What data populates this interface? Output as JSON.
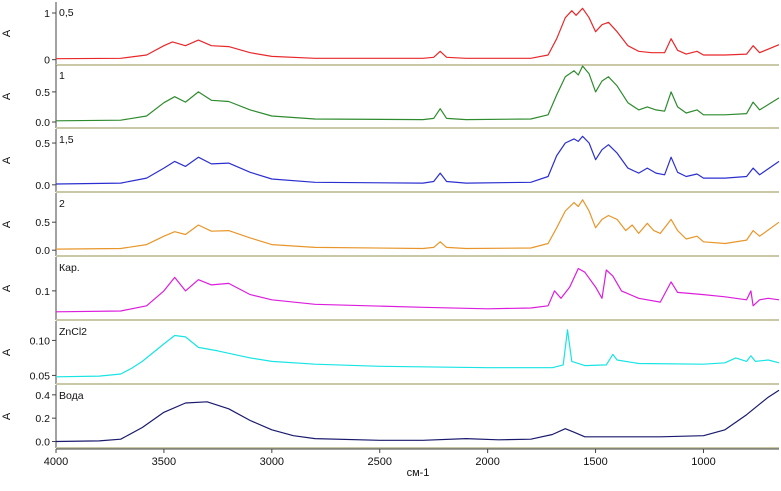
{
  "chart_data": {
    "type": "line",
    "xlabel": "см-1",
    "ylabel": "A",
    "xlim": [
      4000,
      650
    ],
    "x_reversed": true,
    "x_ticks": [
      4000,
      3500,
      3000,
      2500,
      2000,
      1500,
      1000
    ],
    "x_tick_labels": [
      "4000",
      "3500",
      "3000",
      "2500",
      "2000",
      "1500",
      "1000"
    ],
    "grid": false,
    "panels": [
      {
        "label": "0,5",
        "color": "#e8282b",
        "ylim": [
          -0.05,
          1.15
        ],
        "y_ticks": [
          0,
          1
        ],
        "y_tick_labels": [
          "0",
          "1"
        ],
        "points": [
          [
            4000,
            0.02
          ],
          [
            3700,
            0.03
          ],
          [
            3580,
            0.1
          ],
          [
            3500,
            0.3
          ],
          [
            3460,
            0.38
          ],
          [
            3400,
            0.3
          ],
          [
            3340,
            0.42
          ],
          [
            3280,
            0.3
          ],
          [
            3200,
            0.28
          ],
          [
            3100,
            0.15
          ],
          [
            3000,
            0.07
          ],
          [
            2800,
            0.03
          ],
          [
            2300,
            0.03
          ],
          [
            2250,
            0.05
          ],
          [
            2220,
            0.18
          ],
          [
            2190,
            0.05
          ],
          [
            2100,
            0.03
          ],
          [
            1800,
            0.03
          ],
          [
            1720,
            0.1
          ],
          [
            1680,
            0.45
          ],
          [
            1640,
            0.9
          ],
          [
            1610,
            1.05
          ],
          [
            1590,
            0.95
          ],
          [
            1560,
            1.1
          ],
          [
            1530,
            0.9
          ],
          [
            1500,
            0.6
          ],
          [
            1470,
            0.75
          ],
          [
            1440,
            0.8
          ],
          [
            1400,
            0.6
          ],
          [
            1350,
            0.3
          ],
          [
            1300,
            0.18
          ],
          [
            1240,
            0.15
          ],
          [
            1180,
            0.15
          ],
          [
            1150,
            0.45
          ],
          [
            1120,
            0.2
          ],
          [
            1080,
            0.12
          ],
          [
            1030,
            0.18
          ],
          [
            1000,
            0.1
          ],
          [
            900,
            0.1
          ],
          [
            800,
            0.12
          ],
          [
            770,
            0.3
          ],
          [
            740,
            0.15
          ],
          [
            650,
            0.32
          ]
        ]
      },
      {
        "label": "1",
        "color": "#2e8b2e",
        "ylim": [
          -0.05,
          0.88
        ],
        "y_ticks": [
          0.0,
          0.5
        ],
        "y_tick_labels": [
          "0.0",
          "0.5"
        ],
        "points": [
          [
            4000,
            0.02
          ],
          [
            3700,
            0.03
          ],
          [
            3580,
            0.1
          ],
          [
            3500,
            0.32
          ],
          [
            3450,
            0.42
          ],
          [
            3400,
            0.33
          ],
          [
            3340,
            0.5
          ],
          [
            3280,
            0.36
          ],
          [
            3200,
            0.34
          ],
          [
            3100,
            0.2
          ],
          [
            3000,
            0.1
          ],
          [
            2800,
            0.05
          ],
          [
            2300,
            0.04
          ],
          [
            2250,
            0.06
          ],
          [
            2220,
            0.22
          ],
          [
            2190,
            0.06
          ],
          [
            2100,
            0.04
          ],
          [
            1800,
            0.05
          ],
          [
            1720,
            0.12
          ],
          [
            1680,
            0.45
          ],
          [
            1640,
            0.75
          ],
          [
            1600,
            0.85
          ],
          [
            1580,
            0.78
          ],
          [
            1560,
            0.93
          ],
          [
            1530,
            0.8
          ],
          [
            1500,
            0.5
          ],
          [
            1470,
            0.68
          ],
          [
            1440,
            0.75
          ],
          [
            1400,
            0.6
          ],
          [
            1350,
            0.32
          ],
          [
            1300,
            0.2
          ],
          [
            1260,
            0.25
          ],
          [
            1220,
            0.2
          ],
          [
            1180,
            0.18
          ],
          [
            1150,
            0.5
          ],
          [
            1120,
            0.25
          ],
          [
            1080,
            0.15
          ],
          [
            1030,
            0.2
          ],
          [
            1000,
            0.12
          ],
          [
            900,
            0.12
          ],
          [
            800,
            0.14
          ],
          [
            770,
            0.33
          ],
          [
            740,
            0.2
          ],
          [
            650,
            0.4
          ]
        ]
      },
      {
        "label": "1,5",
        "color": "#2b2fcf",
        "ylim": [
          -0.05,
          0.62
        ],
        "y_ticks": [
          0.0,
          0.5
        ],
        "y_tick_labels": [
          "0.0",
          "0.5"
        ],
        "points": [
          [
            4000,
            0.01
          ],
          [
            3700,
            0.02
          ],
          [
            3580,
            0.08
          ],
          [
            3500,
            0.2
          ],
          [
            3450,
            0.28
          ],
          [
            3400,
            0.22
          ],
          [
            3340,
            0.33
          ],
          [
            3280,
            0.25
          ],
          [
            3200,
            0.26
          ],
          [
            3100,
            0.15
          ],
          [
            3000,
            0.07
          ],
          [
            2800,
            0.03
          ],
          [
            2300,
            0.02
          ],
          [
            2250,
            0.04
          ],
          [
            2220,
            0.14
          ],
          [
            2190,
            0.04
          ],
          [
            2100,
            0.02
          ],
          [
            1800,
            0.03
          ],
          [
            1720,
            0.1
          ],
          [
            1680,
            0.35
          ],
          [
            1640,
            0.5
          ],
          [
            1600,
            0.55
          ],
          [
            1580,
            0.52
          ],
          [
            1560,
            0.58
          ],
          [
            1530,
            0.5
          ],
          [
            1500,
            0.3
          ],
          [
            1470,
            0.42
          ],
          [
            1440,
            0.48
          ],
          [
            1400,
            0.38
          ],
          [
            1350,
            0.2
          ],
          [
            1300,
            0.14
          ],
          [
            1260,
            0.2
          ],
          [
            1220,
            0.14
          ],
          [
            1180,
            0.12
          ],
          [
            1150,
            0.33
          ],
          [
            1120,
            0.15
          ],
          [
            1080,
            0.1
          ],
          [
            1030,
            0.13
          ],
          [
            1000,
            0.08
          ],
          [
            900,
            0.08
          ],
          [
            800,
            0.1
          ],
          [
            770,
            0.2
          ],
          [
            740,
            0.12
          ],
          [
            650,
            0.28
          ]
        ]
      },
      {
        "label": "2",
        "color": "#e8962a",
        "ylim": [
          -0.05,
          0.95
        ],
        "y_ticks": [
          0.0,
          0.5
        ],
        "y_tick_labels": [
          "0.0",
          "0.5"
        ],
        "points": [
          [
            4000,
            0.02
          ],
          [
            3700,
            0.03
          ],
          [
            3580,
            0.1
          ],
          [
            3500,
            0.25
          ],
          [
            3450,
            0.33
          ],
          [
            3400,
            0.28
          ],
          [
            3340,
            0.45
          ],
          [
            3280,
            0.34
          ],
          [
            3200,
            0.35
          ],
          [
            3100,
            0.22
          ],
          [
            3000,
            0.1
          ],
          [
            2800,
            0.05
          ],
          [
            2300,
            0.03
          ],
          [
            2250,
            0.05
          ],
          [
            2220,
            0.15
          ],
          [
            2190,
            0.05
          ],
          [
            2100,
            0.03
          ],
          [
            1800,
            0.04
          ],
          [
            1720,
            0.12
          ],
          [
            1680,
            0.4
          ],
          [
            1640,
            0.7
          ],
          [
            1600,
            0.85
          ],
          [
            1580,
            0.78
          ],
          [
            1560,
            0.9
          ],
          [
            1530,
            0.7
          ],
          [
            1500,
            0.4
          ],
          [
            1470,
            0.55
          ],
          [
            1440,
            0.62
          ],
          [
            1400,
            0.55
          ],
          [
            1360,
            0.35
          ],
          [
            1330,
            0.45
          ],
          [
            1300,
            0.3
          ],
          [
            1260,
            0.48
          ],
          [
            1230,
            0.35
          ],
          [
            1200,
            0.3
          ],
          [
            1150,
            0.55
          ],
          [
            1120,
            0.35
          ],
          [
            1080,
            0.2
          ],
          [
            1030,
            0.25
          ],
          [
            1000,
            0.15
          ],
          [
            900,
            0.12
          ],
          [
            800,
            0.18
          ],
          [
            770,
            0.35
          ],
          [
            740,
            0.25
          ],
          [
            650,
            0.5
          ]
        ]
      },
      {
        "label": "Кар.",
        "color": "#dc1edc",
        "ylim": [
          0.065,
          0.14
        ],
        "y_ticks": [
          0.1
        ],
        "y_tick_labels": [
          "0.1"
        ],
        "points": [
          [
            4000,
            0.072
          ],
          [
            3700,
            0.073
          ],
          [
            3580,
            0.08
          ],
          [
            3500,
            0.1
          ],
          [
            3450,
            0.118
          ],
          [
            3400,
            0.1
          ],
          [
            3340,
            0.115
          ],
          [
            3280,
            0.108
          ],
          [
            3200,
            0.11
          ],
          [
            3100,
            0.095
          ],
          [
            3000,
            0.088
          ],
          [
            2800,
            0.082
          ],
          [
            2300,
            0.078
          ],
          [
            2000,
            0.076
          ],
          [
            1800,
            0.077
          ],
          [
            1720,
            0.08
          ],
          [
            1690,
            0.1
          ],
          [
            1660,
            0.09
          ],
          [
            1620,
            0.105
          ],
          [
            1580,
            0.13
          ],
          [
            1550,
            0.125
          ],
          [
            1500,
            0.105
          ],
          [
            1470,
            0.09
          ],
          [
            1450,
            0.128
          ],
          [
            1420,
            0.12
          ],
          [
            1380,
            0.1
          ],
          [
            1300,
            0.09
          ],
          [
            1200,
            0.085
          ],
          [
            1150,
            0.112
          ],
          [
            1120,
            0.098
          ],
          [
            1000,
            0.095
          ],
          [
            900,
            0.092
          ],
          [
            800,
            0.088
          ],
          [
            780,
            0.1
          ],
          [
            770,
            0.08
          ],
          [
            740,
            0.088
          ],
          [
            700,
            0.09
          ],
          [
            650,
            0.088
          ]
        ]
      },
      {
        "label": "ZnCl2",
        "color": "#18e4e4",
        "ylim": [
          0.042,
          0.122
        ],
        "y_ticks": [
          0.05,
          0.1
        ],
        "y_tick_labels": [
          "0.05",
          "0.10"
        ],
        "points": [
          [
            4000,
            0.048
          ],
          [
            3800,
            0.049
          ],
          [
            3700,
            0.052
          ],
          [
            3650,
            0.06
          ],
          [
            3600,
            0.07
          ],
          [
            3500,
            0.095
          ],
          [
            3450,
            0.107
          ],
          [
            3400,
            0.105
          ],
          [
            3340,
            0.09
          ],
          [
            3250,
            0.085
          ],
          [
            3100,
            0.075
          ],
          [
            3000,
            0.07
          ],
          [
            2800,
            0.066
          ],
          [
            2500,
            0.063
          ],
          [
            2000,
            0.061
          ],
          [
            1700,
            0.061
          ],
          [
            1650,
            0.065
          ],
          [
            1630,
            0.115
          ],
          [
            1610,
            0.07
          ],
          [
            1550,
            0.064
          ],
          [
            1450,
            0.065
          ],
          [
            1420,
            0.08
          ],
          [
            1400,
            0.072
          ],
          [
            1300,
            0.067
          ],
          [
            1000,
            0.066
          ],
          [
            900,
            0.068
          ],
          [
            850,
            0.075
          ],
          [
            800,
            0.07
          ],
          [
            780,
            0.078
          ],
          [
            760,
            0.07
          ],
          [
            700,
            0.072
          ],
          [
            650,
            0.068
          ]
        ]
      },
      {
        "label": "Вода",
        "color": "#1a1a6e",
        "ylim": [
          -0.03,
          0.45
        ],
        "y_ticks": [
          0.0,
          0.2,
          0.4
        ],
        "y_tick_labels": [
          "0.0",
          "0.2",
          "0.4"
        ],
        "points": [
          [
            4000,
            0.0
          ],
          [
            3800,
            0.005
          ],
          [
            3700,
            0.02
          ],
          [
            3600,
            0.12
          ],
          [
            3500,
            0.25
          ],
          [
            3400,
            0.33
          ],
          [
            3300,
            0.34
          ],
          [
            3200,
            0.28
          ],
          [
            3100,
            0.18
          ],
          [
            3000,
            0.1
          ],
          [
            2900,
            0.05
          ],
          [
            2800,
            0.025
          ],
          [
            2500,
            0.01
          ],
          [
            2300,
            0.01
          ],
          [
            2100,
            0.025
          ],
          [
            1950,
            0.015
          ],
          [
            1800,
            0.02
          ],
          [
            1700,
            0.06
          ],
          [
            1640,
            0.11
          ],
          [
            1600,
            0.08
          ],
          [
            1550,
            0.04
          ],
          [
            1400,
            0.04
          ],
          [
            1200,
            0.04
          ],
          [
            1000,
            0.05
          ],
          [
            900,
            0.1
          ],
          [
            800,
            0.23
          ],
          [
            700,
            0.38
          ],
          [
            650,
            0.44
          ]
        ]
      }
    ]
  }
}
